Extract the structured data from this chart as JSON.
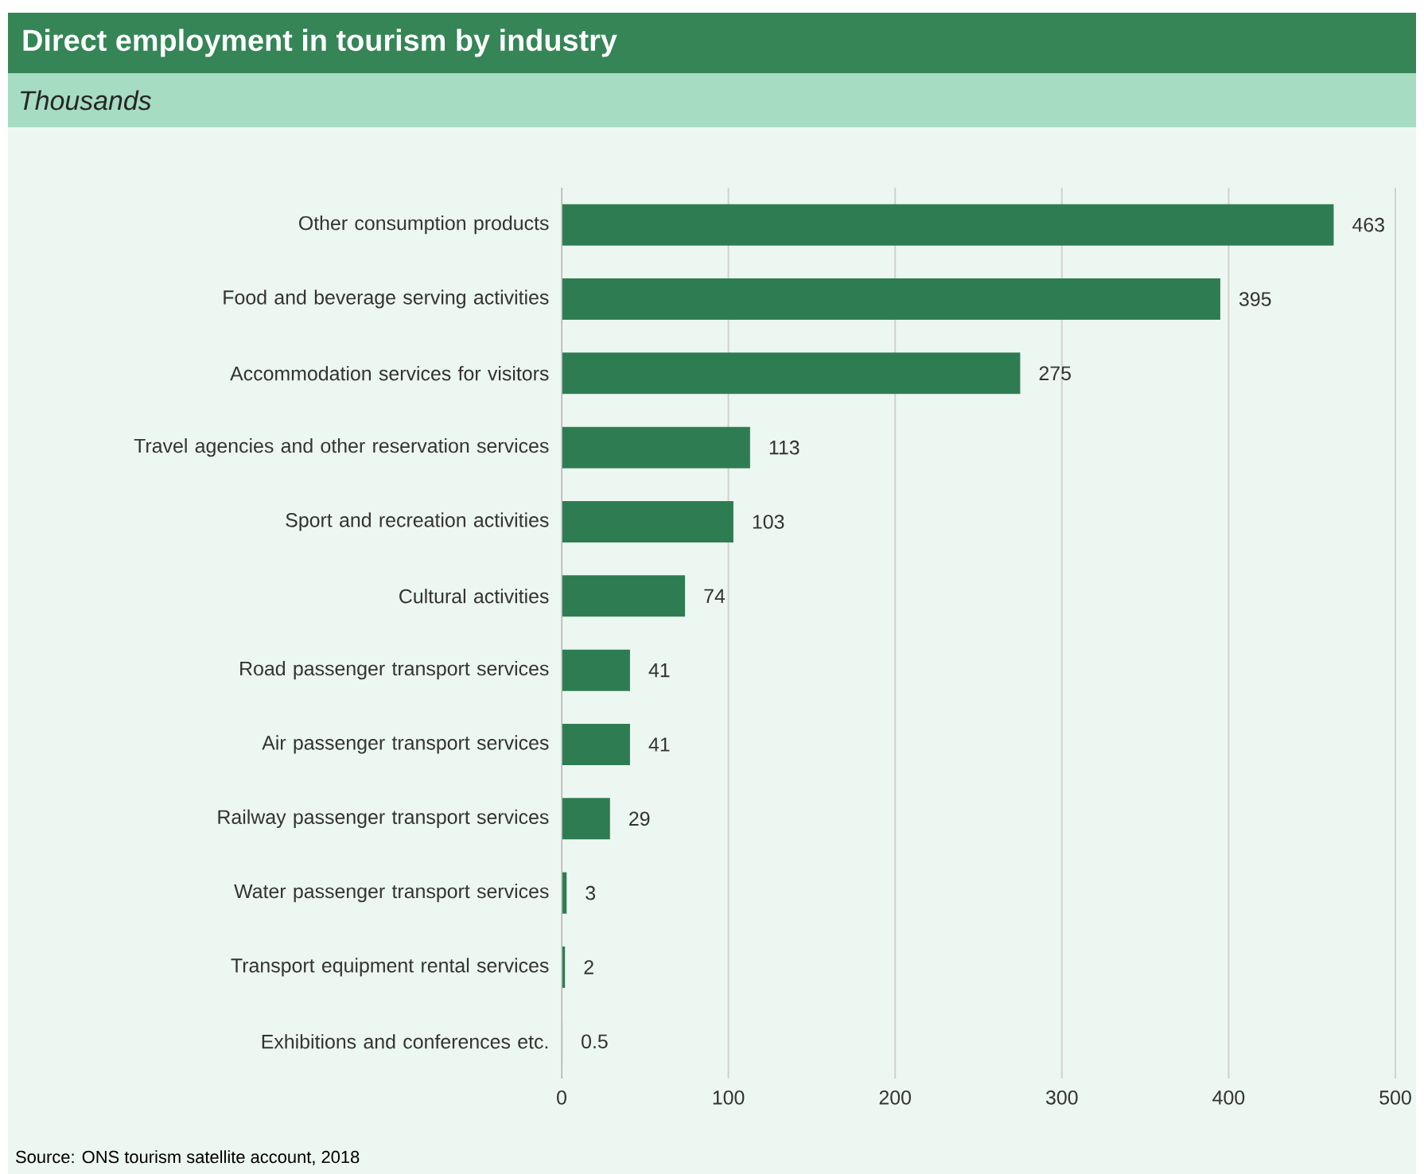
{
  "chart_data": {
    "type": "bar",
    "orientation": "horizontal",
    "title": "Direct employment in tourism by industry",
    "subtitle": "Thousands",
    "categories": [
      "Other consumption products",
      "Food and beverage serving activities",
      "Accommodation services for visitors",
      "Travel agencies and other reservation services",
      "Sport and recreation activities",
      "Cultural activities",
      "Road passenger transport services",
      "Air passenger transport services",
      "Railway passenger transport services",
      "Water passenger transport services",
      "Transport equipment rental services",
      "Exhibitions and conferences etc."
    ],
    "values": [
      463,
      395,
      275,
      113,
      103,
      74,
      41,
      41,
      29,
      3,
      2,
      0.5
    ],
    "color": "#2e7d52",
    "data_labels": true,
    "grid": "x",
    "xlim": [
      0,
      500
    ],
    "xticks": [
      0,
      100,
      200,
      300,
      400,
      500
    ],
    "annotations": [
      "Source: ONS tourism satellite account, 2018"
    ]
  }
}
